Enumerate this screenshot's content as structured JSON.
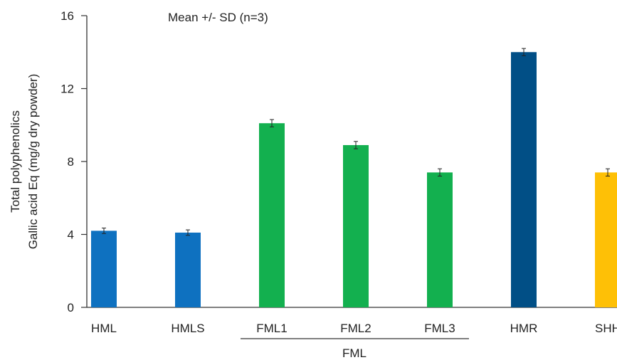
{
  "chart_data": {
    "type": "bar",
    "title": "",
    "annotation": "Mean +/- SD  (n=3)",
    "ylabel_lines": [
      "Total polyphenolics",
      "Gallic acid Eq  (mg/g dry powder)"
    ],
    "xlabel": "",
    "categories": [
      "HML",
      "HMLS",
      "FML1",
      "FML2",
      "FML3",
      "HMR",
      "SHH"
    ],
    "values": [
      4.2,
      4.1,
      10.1,
      8.9,
      7.4,
      14.0,
      7.4
    ],
    "errors": [
      0.15,
      0.15,
      0.2,
      0.2,
      0.2,
      0.2,
      0.2
    ],
    "colors": [
      "#0e71c0",
      "#0e71c0",
      "#13b04f",
      "#13b04f",
      "#13b04f",
      "#014f86",
      "#fec006"
    ],
    "ylim": [
      0,
      16
    ],
    "yticks": [
      0,
      4,
      8,
      12,
      16
    ],
    "group": {
      "label": "FML",
      "categories": [
        "FML1",
        "FML2",
        "FML3"
      ]
    },
    "grid": false,
    "legend": "none"
  }
}
